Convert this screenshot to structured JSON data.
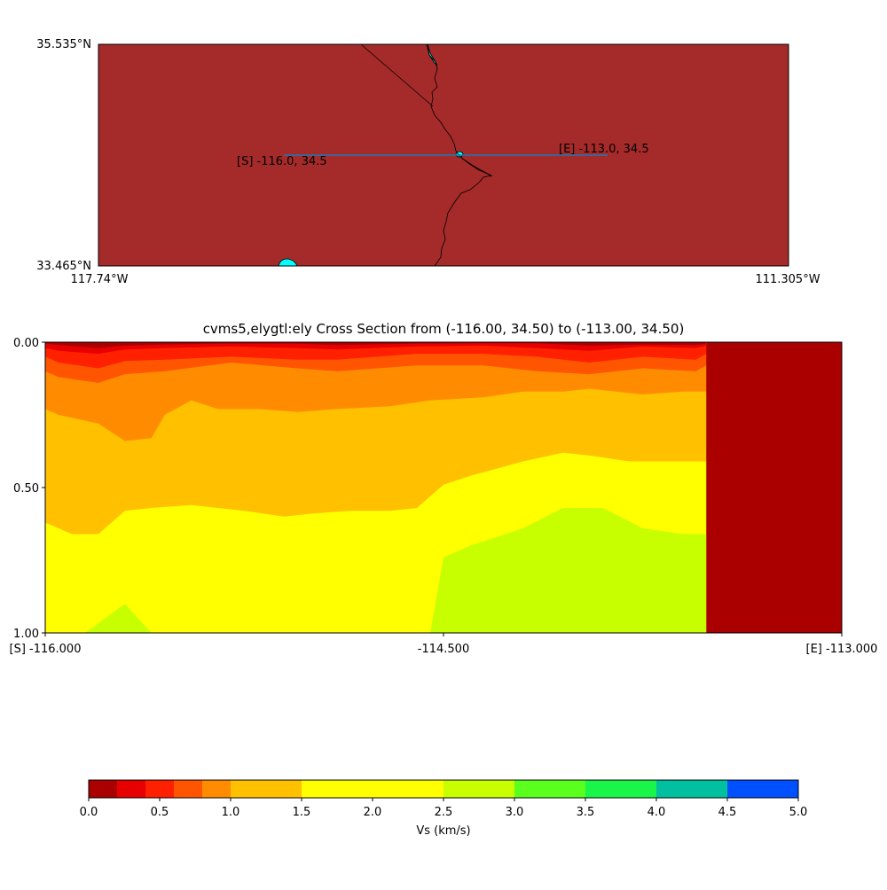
{
  "chart_data": [
    {
      "type": "map",
      "lat_labels": {
        "top": "35.535°N",
        "bottom": "33.465°N"
      },
      "lon_labels": {
        "left": "117.74°W",
        "right": "111.305°W"
      },
      "extent": {
        "lon_min": -117.74,
        "lon_max": -111.305,
        "lat_min": 33.465,
        "lat_max": 35.535
      },
      "land_color": "#a52a2a",
      "water_color": "#00ffff",
      "boundary_color": "#000000",
      "line_color": "#1f77b4",
      "start_label": "[S] -116.0, 34.5",
      "end_label": "[E] -113.0, 34.5",
      "start": [
        -116.0,
        34.5
      ],
      "end": [
        -113.0,
        34.5
      ]
    },
    {
      "type": "heatmap",
      "title": "cvms5,elygtl:ely Cross Section from (-116.00, 34.50) to (-113.00, 34.50)",
      "x_tick_labels": [
        "[S] -116.000",
        "-114.500",
        "[E] -113.000"
      ],
      "x_ticks": [
        -116.0,
        -114.5,
        -113.0
      ],
      "y_tick_labels": [
        "0.00",
        "0.50",
        "1.00"
      ],
      "y_ticks": [
        0.0,
        0.5,
        1.0
      ],
      "xlim": [
        -116.0,
        -113.0
      ],
      "ylim": [
        0.0,
        1.0
      ],
      "no_data_color": "#aa0000",
      "data_extent_lon": -113.51,
      "layers": [
        {
          "band": "0.0-0.2",
          "color": "#aa0000",
          "depth_boundary": [
            [
              -116.0,
              0.0
            ],
            [
              -113.51,
              0.0
            ]
          ]
        },
        {
          "band": "0.2-0.4",
          "color": "#e60000",
          "depth_boundary": [
            [
              -116.0,
              0.005
            ],
            [
              -115.95,
              0.01
            ],
            [
              -115.8,
              0.02
            ],
            [
              -115.7,
              0.012
            ],
            [
              -115.55,
              0.008
            ],
            [
              -115.3,
              0.005
            ],
            [
              -115.05,
              0.005
            ],
            [
              -114.9,
              0.01
            ],
            [
              -114.6,
              0.005
            ],
            [
              -114.35,
              0.004
            ],
            [
              -114.15,
              0.004
            ],
            [
              -113.95,
              0.012
            ],
            [
              -113.75,
              0.008
            ],
            [
              -113.55,
              0.01
            ],
            [
              -113.51,
              0.005
            ]
          ]
        },
        {
          "band": "0.4-0.6",
          "color": "#ff2000",
          "depth_boundary": [
            [
              -116.0,
              0.02
            ],
            [
              -115.95,
              0.03
            ],
            [
              -115.8,
              0.04
            ],
            [
              -115.7,
              0.025
            ],
            [
              -115.55,
              0.02
            ],
            [
              -115.3,
              0.015
            ],
            [
              -115.05,
              0.02
            ],
            [
              -114.9,
              0.025
            ],
            [
              -114.6,
              0.015
            ],
            [
              -114.35,
              0.012
            ],
            [
              -114.15,
              0.02
            ],
            [
              -113.95,
              0.03
            ],
            [
              -113.75,
              0.015
            ],
            [
              -113.55,
              0.02
            ],
            [
              -113.51,
              0.012
            ]
          ]
        },
        {
          "band": "0.6-0.8",
          "color": "#ff5500",
          "depth_boundary": [
            [
              -116.0,
              0.05
            ],
            [
              -115.95,
              0.07
            ],
            [
              -115.8,
              0.09
            ],
            [
              -115.7,
              0.065
            ],
            [
              -115.55,
              0.06
            ],
            [
              -115.3,
              0.05
            ],
            [
              -115.05,
              0.06
            ],
            [
              -114.9,
              0.06
            ],
            [
              -114.6,
              0.04
            ],
            [
              -114.35,
              0.04
            ],
            [
              -114.15,
              0.05
            ],
            [
              -113.95,
              0.07
            ],
            [
              -113.75,
              0.05
            ],
            [
              -113.55,
              0.06
            ],
            [
              -113.51,
              0.04
            ]
          ]
        },
        {
          "band": "0.8-1.0",
          "color": "#ff8c00",
          "depth_boundary": [
            [
              -116.0,
              0.1
            ],
            [
              -115.95,
              0.12
            ],
            [
              -115.8,
              0.14
            ],
            [
              -115.7,
              0.11
            ],
            [
              -115.55,
              0.1
            ],
            [
              -115.3,
              0.07
            ],
            [
              -115.05,
              0.09
            ],
            [
              -114.9,
              0.1
            ],
            [
              -114.6,
              0.08
            ],
            [
              -114.35,
              0.08
            ],
            [
              -114.15,
              0.1
            ],
            [
              -113.95,
              0.11
            ],
            [
              -113.75,
              0.09
            ],
            [
              -113.55,
              0.1
            ],
            [
              -113.51,
              0.08
            ]
          ]
        },
        {
          "band": "1.0-1.5",
          "color": "#ffc000",
          "depth_boundary": [
            [
              -116.0,
              0.23
            ],
            [
              -115.95,
              0.25
            ],
            [
              -115.8,
              0.28
            ],
            [
              -115.7,
              0.34
            ],
            [
              -115.6,
              0.33
            ],
            [
              -115.55,
              0.25
            ],
            [
              -115.45,
              0.2
            ],
            [
              -115.35,
              0.23
            ],
            [
              -115.2,
              0.23
            ],
            [
              -115.05,
              0.24
            ],
            [
              -114.9,
              0.23
            ],
            [
              -114.7,
              0.22
            ],
            [
              -114.55,
              0.2
            ],
            [
              -114.35,
              0.19
            ],
            [
              -114.2,
              0.17
            ],
            [
              -114.05,
              0.17
            ],
            [
              -113.95,
              0.16
            ],
            [
              -113.75,
              0.18
            ],
            [
              -113.6,
              0.17
            ],
            [
              -113.51,
              0.17
            ]
          ]
        },
        {
          "band": "1.5-2.5",
          "color": "#ffff00",
          "depth_boundary": [
            [
              -116.0,
              0.62
            ],
            [
              -115.95,
              0.64
            ],
            [
              -115.9,
              0.66
            ],
            [
              -115.8,
              0.66
            ],
            [
              -115.75,
              0.62
            ],
            [
              -115.7,
              0.58
            ],
            [
              -115.6,
              0.57
            ],
            [
              -115.45,
              0.56
            ],
            [
              -115.35,
              0.57
            ],
            [
              -115.25,
              0.58
            ],
            [
              -115.1,
              0.6
            ],
            [
              -115.0,
              0.59
            ],
            [
              -114.85,
              0.58
            ],
            [
              -114.7,
              0.58
            ],
            [
              -114.6,
              0.57
            ],
            [
              -114.5,
              0.49
            ],
            [
              -114.4,
              0.46
            ],
            [
              -114.2,
              0.41
            ],
            [
              -114.05,
              0.38
            ],
            [
              -113.95,
              0.39
            ],
            [
              -113.8,
              0.41
            ],
            [
              -113.6,
              0.41
            ],
            [
              -113.51,
              0.41
            ]
          ]
        },
        {
          "band": "2.5-3.0",
          "color": "#c8ff00",
          "depth_boundary": [
            [
              -116.0,
              1.0
            ],
            [
              -115.85,
              1.0
            ],
            [
              -115.7,
              0.9
            ],
            [
              -115.6,
              1.0
            ],
            [
              -114.55,
              1.0
            ],
            [
              -114.5,
              0.74
            ],
            [
              -114.4,
              0.7
            ],
            [
              -114.2,
              0.64
            ],
            [
              -114.05,
              0.57
            ],
            [
              -113.9,
              0.57
            ],
            [
              -113.75,
              0.64
            ],
            [
              -113.6,
              0.66
            ],
            [
              -113.51,
              0.66
            ]
          ]
        },
        {
          "band": "3.0-3.5",
          "color": "#5aff1e",
          "depth_boundary": [
            [
              -116.0,
              1.0
            ],
            [
              -113.51,
              1.0
            ]
          ]
        }
      ]
    },
    {
      "type": "colorbar",
      "xlabel": "Vs (km/s)",
      "tick_labels": [
        "0.0",
        "0.5",
        "1.0",
        "1.5",
        "2.0",
        "2.5",
        "3.0",
        "3.5",
        "4.0",
        "4.5",
        "5.0"
      ],
      "ticks": [
        0.0,
        0.5,
        1.0,
        1.5,
        2.0,
        2.5,
        3.0,
        3.5,
        4.0,
        4.5,
        5.0
      ],
      "range": [
        0.0,
        5.0
      ],
      "bins": [
        {
          "from": 0.0,
          "to": 0.2,
          "color": "#aa0000"
        },
        {
          "from": 0.2,
          "to": 0.4,
          "color": "#e60000"
        },
        {
          "from": 0.4,
          "to": 0.6,
          "color": "#ff2000"
        },
        {
          "from": 0.6,
          "to": 0.8,
          "color": "#ff5500"
        },
        {
          "from": 0.8,
          "to": 1.0,
          "color": "#ff8c00"
        },
        {
          "from": 1.0,
          "to": 1.5,
          "color": "#ffc000"
        },
        {
          "from": 1.5,
          "to": 2.5,
          "color": "#ffff00"
        },
        {
          "from": 2.5,
          "to": 3.0,
          "color": "#c8ff00"
        },
        {
          "from": 3.0,
          "to": 3.5,
          "color": "#5aff1e"
        },
        {
          "from": 3.5,
          "to": 4.0,
          "color": "#1af54a"
        },
        {
          "from": 4.0,
          "to": 4.5,
          "color": "#00c0a0"
        },
        {
          "from": 4.5,
          "to": 5.0,
          "color": "#0050ff"
        }
      ]
    }
  ]
}
